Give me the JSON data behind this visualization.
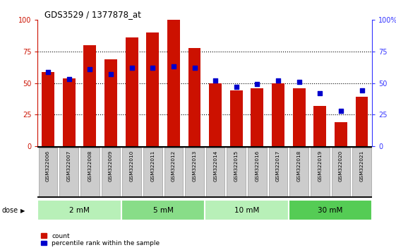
{
  "title": "GDS3529 / 1377878_at",
  "samples": [
    "GSM322006",
    "GSM322007",
    "GSM322008",
    "GSM322009",
    "GSM322010",
    "GSM322011",
    "GSM322012",
    "GSM322013",
    "GSM322014",
    "GSM322015",
    "GSM322016",
    "GSM322017",
    "GSM322018",
    "GSM322019",
    "GSM322020",
    "GSM322021"
  ],
  "count_values": [
    59,
    54,
    80,
    69,
    86,
    90,
    100,
    78,
    50,
    44,
    46,
    50,
    46,
    32,
    19,
    39
  ],
  "percentile_values": [
    59,
    53,
    61,
    57,
    62,
    62,
    63,
    62,
    52,
    47,
    49,
    52,
    51,
    42,
    28,
    44
  ],
  "dose_groups": [
    {
      "label": "2 mM",
      "start": 0,
      "end": 3,
      "color": "#b8f0b8"
    },
    {
      "label": "5 mM",
      "start": 4,
      "end": 7,
      "color": "#88dd88"
    },
    {
      "label": "10 mM",
      "start": 8,
      "end": 11,
      "color": "#b8f0b8"
    },
    {
      "label": "30 mM",
      "start": 12,
      "end": 15,
      "color": "#55cc55"
    }
  ],
  "bar_color": "#cc1100",
  "dot_color": "#0000cc",
  "yticks_left": [
    0,
    25,
    50,
    75,
    100
  ],
  "yticks_right": [
    0,
    25,
    50,
    75,
    100
  ],
  "ymax": 100,
  "tick_label_bg": "#cccccc",
  "dose_label": "dose"
}
